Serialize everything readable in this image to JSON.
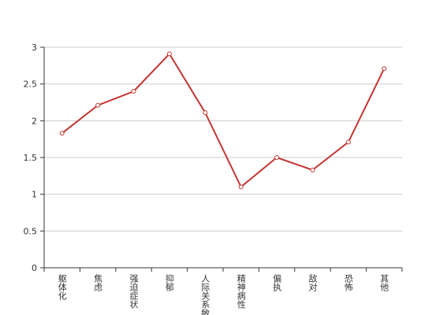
{
  "chart_data": {
    "type": "line",
    "categories": [
      "躯体化",
      "焦虑",
      "强迫症状",
      "抑郁",
      "人际关系敏",
      "精神病性",
      "偏执",
      "敌对",
      "恐怖",
      "其他"
    ],
    "values": [
      1.83,
      2.21,
      2.4,
      2.91,
      2.11,
      1.1,
      1.5,
      1.33,
      1.71,
      2.71
    ],
    "color": "#c23531",
    "ylim": [
      0,
      3
    ],
    "yticks": [
      0,
      0.5,
      1,
      1.5,
      2,
      2.5,
      3
    ],
    "grid": true
  }
}
